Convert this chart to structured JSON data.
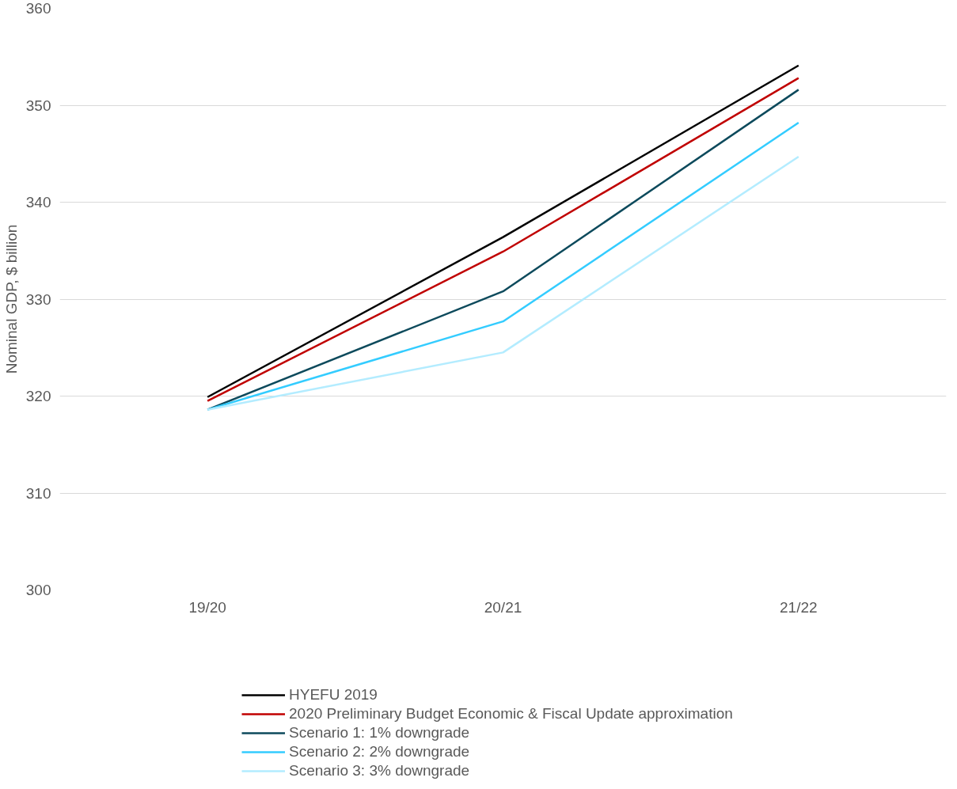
{
  "chart_data": {
    "type": "line",
    "ylabel": "Nominal GDP, $ billion",
    "categories": [
      "19/20",
      "20/21",
      "21/22"
    ],
    "series": [
      {
        "name": "HYEFU 2019",
        "color": "#000000",
        "values": [
          319.9,
          336.4,
          354.1
        ]
      },
      {
        "name": "2020 Preliminary Budget Economic & Fiscal Update approximation",
        "color": "#c00000",
        "values": [
          319.5,
          334.9,
          352.8
        ]
      },
      {
        "name": "Scenario 1: 1% downgrade",
        "color": "#0d4a5c",
        "values": [
          318.6,
          330.8,
          351.6
        ]
      },
      {
        "name": "Scenario 2: 2% downgrade",
        "color": "#33ccff",
        "values": [
          318.6,
          327.7,
          348.2
        ]
      },
      {
        "name": "Scenario 3: 3% downgrade",
        "color": "#b3ecff",
        "values": [
          318.6,
          324.5,
          344.7
        ]
      }
    ],
    "ylim": [
      300,
      360
    ],
    "yticks": [
      300,
      310,
      320,
      330,
      340,
      350,
      360
    ],
    "grid": "y",
    "legend": "bottom",
    "marker": "none",
    "line_style": "solid"
  }
}
